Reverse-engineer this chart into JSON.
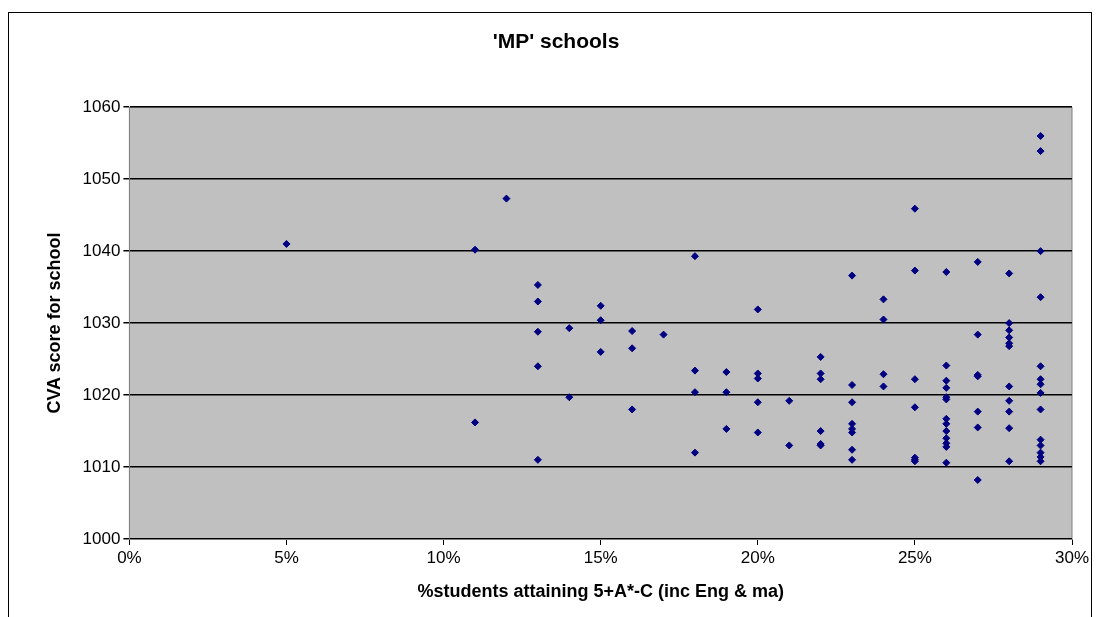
{
  "chart_data": {
    "type": "scatter",
    "title": "'MP' schools",
    "xlabel": "%students attaining 5+A*-C (inc Eng & ma)",
    "ylabel": "CVA score for school",
    "x": [
      0.05,
      0.11,
      0.11,
      0.12,
      0.13,
      0.13,
      0.13,
      0.13,
      0.13,
      0.14,
      0.14,
      0.15,
      0.15,
      0.15,
      0.16,
      0.16,
      0.16,
      0.17,
      0.18,
      0.18,
      0.18,
      0.18,
      0.19,
      0.19,
      0.19,
      0.2,
      0.2,
      0.2,
      0.2,
      0.2,
      0.21,
      0.21,
      0.22,
      0.22,
      0.22,
      0.22,
      0.22,
      0.22,
      0.23,
      0.23,
      0.23,
      0.23,
      0.23,
      0.23,
      0.23,
      0.23,
      0.24,
      0.24,
      0.24,
      0.24,
      0.25,
      0.25,
      0.25,
      0.25,
      0.25,
      0.25,
      0.25,
      0.26,
      0.26,
      0.26,
      0.26,
      0.26,
      0.26,
      0.26,
      0.26,
      0.26,
      0.26,
      0.26,
      0.26,
      0.26,
      0.27,
      0.27,
      0.27,
      0.27,
      0.27,
      0.27,
      0.27,
      0.28,
      0.28,
      0.28,
      0.28,
      0.28,
      0.28,
      0.28,
      0.28,
      0.28,
      0.28,
      0.28,
      0.29,
      0.29,
      0.29,
      0.29,
      0.29,
      0.29,
      0.29,
      0.29,
      0.29,
      0.29,
      0.29,
      0.29,
      0.29,
      0.29
    ],
    "series": [
      {
        "color": "#000080",
        "values": [
          1041,
          1040.2,
          1016.2,
          1047.3,
          1035.3,
          1033,
          1028.8,
          1024,
          1011,
          1029.3,
          1019.7,
          1032.4,
          1030.4,
          1026,
          1028.9,
          1026.5,
          1018,
          1028.4,
          1039.3,
          1023.4,
          1020.4,
          1012,
          1023.2,
          1020.4,
          1015.3,
          1031.9,
          1023,
          1022.3,
          1019,
          1014.8,
          1019.2,
          1013,
          1025.3,
          1023,
          1022.2,
          1015,
          1013.2,
          1013,
          1036.6,
          1021.4,
          1019,
          1016,
          1015.3,
          1014.8,
          1012.4,
          1011,
          1033.3,
          1030.5,
          1022.9,
          1021.2,
          1045.9,
          1037.3,
          1022.2,
          1018.3,
          1011.3,
          1011,
          1010.8,
          1037.1,
          1024.1,
          1022,
          1021,
          1019.7,
          1019.4,
          1016.7,
          1016,
          1015,
          1014,
          1013.3,
          1012.8,
          1010.6,
          1038.5,
          1028.4,
          1022.8,
          1022.6,
          1017.7,
          1015.5,
          1008.2,
          1036.9,
          1030,
          1029,
          1028,
          1027.2,
          1026.8,
          1021.2,
          1019.2,
          1017.7,
          1015.4,
          1010.8,
          1056,
          1053.9,
          1040,
          1033.6,
          1024,
          1022.2,
          1021.5,
          1020.3,
          1018,
          1013.8,
          1013,
          1012,
          1011.4,
          1010.8
        ]
      }
    ],
    "xlim": [
      0,
      0.3
    ],
    "xticks": [
      {
        "value": 0,
        "label": "0%"
      },
      {
        "value": 0.05,
        "label": "5%"
      },
      {
        "value": 0.1,
        "label": "10%"
      },
      {
        "value": 0.15,
        "label": "15%"
      },
      {
        "value": 0.2,
        "label": "20%"
      },
      {
        "value": 0.25,
        "label": "25%"
      },
      {
        "value": 0.3,
        "label": "30%"
      }
    ],
    "ylim": [
      1000,
      1060
    ],
    "yticks": [
      1000,
      1010,
      1020,
      1030,
      1040,
      1050,
      1060
    ],
    "grid": "y",
    "legend": false,
    "marker": "diamond"
  }
}
